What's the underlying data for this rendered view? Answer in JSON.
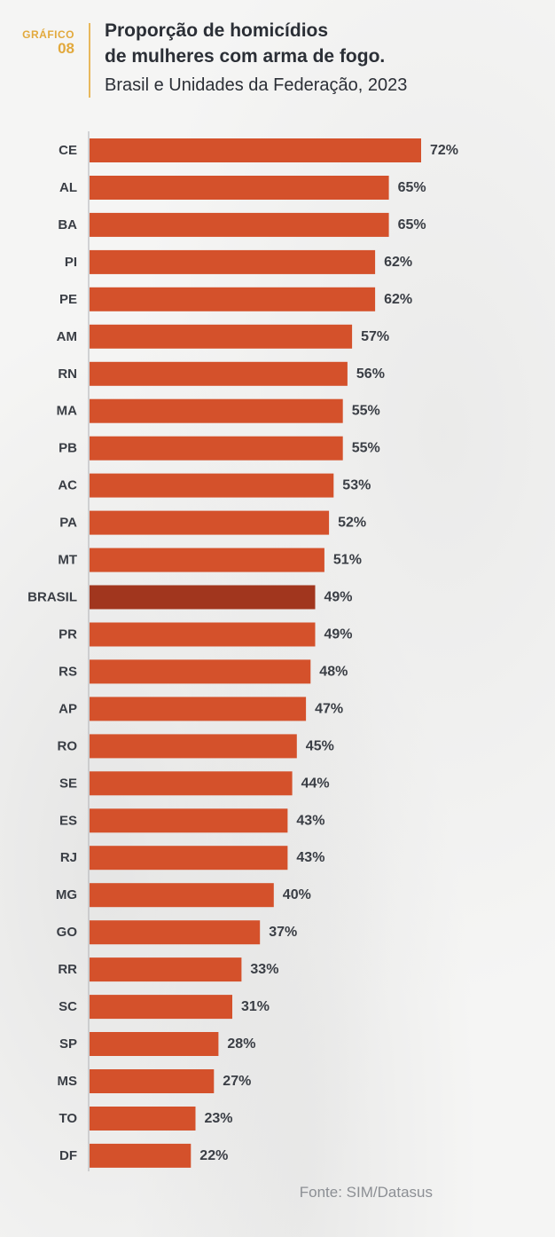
{
  "header": {
    "grafico_label": "GRÁFICO",
    "grafico_number": "08",
    "title_line1": "Proporção de homicídios",
    "title_line2": "de mulheres com arma de fogo.",
    "subtitle": "Brasil e Unidades da Federação, 2023"
  },
  "source": "Fonte: SIM/Datasus",
  "colors": {
    "bar": "#d4512b",
    "highlight_bar": "#a1361e",
    "highlight_text": "#a1361e",
    "text": "#3a3e45",
    "accent": "#e2a93c"
  },
  "chart_data": {
    "type": "bar",
    "orientation": "horizontal",
    "categories": [
      "CE",
      "AL",
      "BA",
      "PI",
      "PE",
      "AM",
      "RN",
      "MA",
      "PB",
      "AC",
      "PA",
      "MT",
      "BRASIL",
      "PR",
      "RS",
      "AP",
      "RO",
      "SE",
      "ES",
      "RJ",
      "MG",
      "GO",
      "RR",
      "SC",
      "SP",
      "MS",
      "TO",
      "DF"
    ],
    "values": [
      72,
      65,
      65,
      62,
      62,
      57,
      56,
      55,
      55,
      53,
      52,
      51,
      49,
      49,
      48,
      47,
      45,
      44,
      43,
      43,
      40,
      37,
      33,
      31,
      28,
      27,
      23,
      22
    ],
    "labels": [
      "72%",
      "65%",
      "65%",
      "62%",
      "62%",
      "57%",
      "56%",
      "55%",
      "55%",
      "53%",
      "52%",
      "51%",
      "49%",
      "49%",
      "48%",
      "47%",
      "45%",
      "44%",
      "43%",
      "43%",
      "40%",
      "37%",
      "33%",
      "31%",
      "28%",
      "27%",
      "23%",
      "22%"
    ],
    "highlight": "BRASIL",
    "unit": "%",
    "xlim": [
      0,
      72
    ]
  }
}
